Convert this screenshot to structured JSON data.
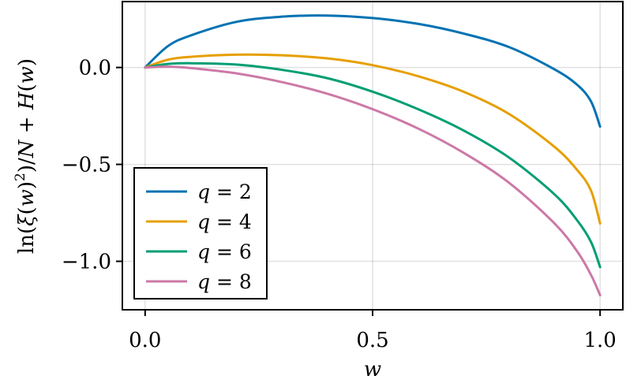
{
  "chart_data": {
    "type": "line",
    "xlabel": "w",
    "ylabel": "ln(ξ(w)²)/N + H(w)",
    "xlim": [
      -0.05,
      1.05
    ],
    "ylim": [
      -1.25,
      0.34
    ],
    "xticks": [
      0.0,
      0.5,
      1.0
    ],
    "xtick_labels": [
      "0.0",
      "0.5",
      "1.0"
    ],
    "yticks": [
      0.0,
      -0.5,
      -1.0
    ],
    "ytick_labels": [
      "0.0",
      "−0.5",
      "−1.0"
    ],
    "grid": true,
    "legend_position": "bottom-left",
    "series": [
      {
        "name": "q = 2",
        "color": "#0072B2",
        "x": [
          0,
          0.05,
          0.1,
          0.2,
          0.3,
          0.4,
          0.5,
          0.6,
          0.7,
          0.8,
          0.9,
          0.95,
          0.98,
          1.0
        ],
        "y": [
          0,
          0.11,
          0.165,
          0.235,
          0.262,
          0.268,
          0.255,
          0.225,
          0.175,
          0.105,
          -0.01,
          -0.09,
          -0.175,
          -0.305
        ]
      },
      {
        "name": "q = 4",
        "color": "#E69F00",
        "x": [
          0,
          0.05,
          0.1,
          0.2,
          0.3,
          0.4,
          0.5,
          0.6,
          0.7,
          0.8,
          0.9,
          0.95,
          0.98,
          1.0
        ],
        "y": [
          0,
          0.04,
          0.055,
          0.066,
          0.063,
          0.047,
          0.012,
          -0.045,
          -0.125,
          -0.24,
          -0.41,
          -0.53,
          -0.635,
          -0.805
        ]
      },
      {
        "name": "q = 6",
        "color": "#009E73",
        "x": [
          0,
          0.05,
          0.1,
          0.2,
          0.3,
          0.4,
          0.5,
          0.6,
          0.7,
          0.8,
          0.9,
          0.95,
          0.98,
          1.0
        ],
        "y": [
          0,
          0.018,
          0.022,
          0.015,
          -0.012,
          -0.055,
          -0.125,
          -0.215,
          -0.325,
          -0.465,
          -0.655,
          -0.79,
          -0.9,
          -1.03
        ]
      },
      {
        "name": "q = 8",
        "color": "#CC79A7",
        "x": [
          0,
          0.05,
          0.1,
          0.2,
          0.3,
          0.4,
          0.5,
          0.6,
          0.7,
          0.8,
          0.9,
          0.95,
          0.98,
          1.0
        ],
        "y": [
          0,
          0.004,
          -0.003,
          -0.03,
          -0.075,
          -0.135,
          -0.215,
          -0.315,
          -0.44,
          -0.595,
          -0.805,
          -0.95,
          -1.07,
          -1.175
        ]
      }
    ]
  },
  "legend": {
    "items": [
      {
        "var": "q",
        "op": " = ",
        "value": "2",
        "color": "#0072B2"
      },
      {
        "var": "q",
        "op": " = ",
        "value": "4",
        "color": "#E69F00"
      },
      {
        "var": "q",
        "op": " = ",
        "value": "6",
        "color": "#009E73"
      },
      {
        "var": "q",
        "op": " = ",
        "value": "8",
        "color": "#CC79A7"
      }
    ]
  }
}
